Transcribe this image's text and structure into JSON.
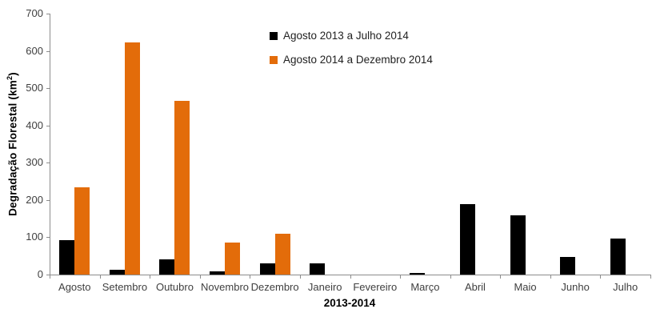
{
  "chart_data": {
    "type": "bar",
    "title": "",
    "xlabel": "2013-2014",
    "ylabel": "Degradação Florestal (km²)",
    "ylabel_parts": {
      "text": "Degradação Florestal (km",
      "sup": "2",
      "end": ")"
    },
    "ylim": [
      0,
      700
    ],
    "yticks": [
      0,
      100,
      200,
      300,
      400,
      500,
      600,
      700
    ],
    "grid": false,
    "legend_position": "top-center",
    "categories": [
      "Agosto",
      "Setembro",
      "Outubro",
      "Novembro",
      "Dezembro",
      "Janeiro",
      "Fevereiro",
      "Março",
      "Abril",
      "Maio",
      "Junho",
      "Julho"
    ],
    "series": [
      {
        "name": "Agosto 2013 a Julho 2014",
        "color": "#000000",
        "values": [
          93,
          13,
          41,
          8,
          31,
          31,
          0,
          4,
          190,
          158,
          47,
          96
        ]
      },
      {
        "name": "Agosto 2014 a Dezembro 2014",
        "color": "#E36C0A",
        "values": [
          235,
          622,
          466,
          85,
          109,
          0,
          0,
          0,
          0,
          0,
          0,
          0
        ]
      }
    ]
  },
  "colors": {
    "series1": "#000000",
    "series2": "#E36C0A",
    "axis": "#8c8c8c",
    "tick_text": "#3f3f3f",
    "background": "#ffffff"
  }
}
